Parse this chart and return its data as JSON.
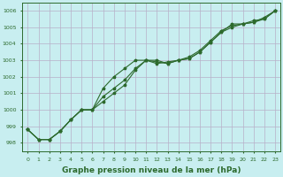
{
  "x": [
    0,
    1,
    2,
    3,
    4,
    5,
    6,
    7,
    8,
    9,
    10,
    11,
    12,
    13,
    14,
    15,
    16,
    17,
    18,
    19,
    20,
    21,
    22,
    23
  ],
  "series1": [
    998.8,
    998.2,
    998.2,
    998.7,
    999.4,
    1000.0,
    1000.0,
    1001.3,
    1002.0,
    1002.5,
    1003.0,
    1003.0,
    1003.0,
    1002.8,
    1003.0,
    1003.1,
    1003.5,
    1004.1,
    1004.7,
    1005.2,
    1005.2,
    1005.3,
    1005.6,
    1006.0
  ],
  "series2": [
    998.8,
    998.2,
    998.2,
    998.7,
    999.4,
    1000.0,
    1000.0,
    1000.8,
    1001.3,
    1001.8,
    1002.5,
    1003.0,
    1002.8,
    1002.9,
    1003.0,
    1003.1,
    1003.5,
    1004.1,
    1004.7,
    1005.0,
    1005.2,
    1005.3,
    1005.5,
    1006.0
  ],
  "series3": [
    998.8,
    998.2,
    998.2,
    998.7,
    999.4,
    1000.0,
    1000.0,
    1000.5,
    1001.0,
    1001.5,
    1002.4,
    1003.0,
    1002.9,
    1002.8,
    1003.0,
    1003.2,
    1003.6,
    1004.2,
    1004.8,
    1005.1,
    1005.2,
    1005.4,
    1005.5,
    1006.0
  ],
  "ylim": [
    997.5,
    1006.5
  ],
  "xlim": [
    -0.5,
    23.5
  ],
  "yticks": [
    998,
    999,
    1000,
    1001,
    1002,
    1003,
    1004,
    1005,
    1006
  ],
  "xticks": [
    0,
    1,
    2,
    3,
    4,
    5,
    6,
    7,
    8,
    9,
    10,
    11,
    12,
    13,
    14,
    15,
    16,
    17,
    18,
    19,
    20,
    21,
    22,
    23
  ],
  "line_color": "#2d6a2d",
  "bg_color": "#c8eef0",
  "grid_color_major": "#b8b0c8",
  "grid_color_minor": "#d8c8d8",
  "xlabel": "Graphe pression niveau de la mer (hPa)",
  "xlabel_fontsize": 6.5,
  "marker": "*",
  "marker_size": 2.5,
  "linewidth": 0.8
}
